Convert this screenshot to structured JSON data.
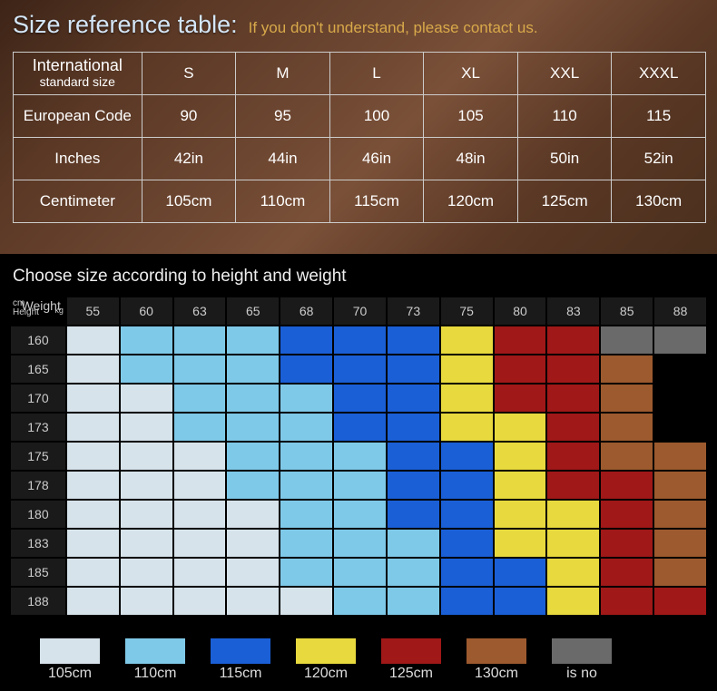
{
  "title": {
    "main": "Size reference table:",
    "sub": "If you don't understand, please contact us."
  },
  "ref_table": {
    "row_headers": [
      {
        "main": "International",
        "sub": "standard size"
      },
      "European Code",
      "Inches",
      "Centimeter"
    ],
    "rows": [
      [
        "S",
        "M",
        "L",
        "XL",
        "XXL",
        "XXXL"
      ],
      [
        "90",
        "95",
        "100",
        "105",
        "110",
        "115"
      ],
      [
        "42in",
        "44in",
        "46in",
        "48in",
        "50in",
        "52in"
      ],
      [
        "105cm",
        "110cm",
        "115cm",
        "120cm",
        "125cm",
        "130cm"
      ]
    ]
  },
  "choose_title": "Choose size according to height and weight",
  "corner": {
    "weight": "Weight",
    "kg": "kg",
    "height": "Height",
    "cm": "cm"
  },
  "weights": [
    "55",
    "60",
    "63",
    "65",
    "68",
    "70",
    "73",
    "75",
    "80",
    "83",
    "85",
    "88"
  ],
  "heights": [
    "160",
    "165",
    "170",
    "173",
    "175",
    "178",
    "180",
    "183",
    "185",
    "188"
  ],
  "colors": {
    "105": "#d7e3ea",
    "110": "#7fc9e8",
    "115": "#1a5fd6",
    "120": "#e8d93e",
    "125": "#a01818",
    "130": "#9c5a2e",
    "none": "#6a6a6a",
    "blank": "#000000"
  },
  "matrix": [
    [
      "105",
      "110",
      "110",
      "110",
      "115",
      "115",
      "115",
      "120",
      "125",
      "125",
      "none",
      "none"
    ],
    [
      "105",
      "110",
      "110",
      "110",
      "115",
      "115",
      "115",
      "120",
      "125",
      "125",
      "130",
      "blank"
    ],
    [
      "105",
      "105",
      "110",
      "110",
      "110",
      "115",
      "115",
      "120",
      "125",
      "125",
      "130",
      "blank"
    ],
    [
      "105",
      "105",
      "110",
      "110",
      "110",
      "115",
      "115",
      "120",
      "120",
      "125",
      "130",
      "blank"
    ],
    [
      "105",
      "105",
      "105",
      "110",
      "110",
      "110",
      "115",
      "115",
      "120",
      "125",
      "130",
      "130"
    ],
    [
      "105",
      "105",
      "105",
      "110",
      "110",
      "110",
      "115",
      "115",
      "120",
      "125",
      "125",
      "130"
    ],
    [
      "105",
      "105",
      "105",
      "105",
      "110",
      "110",
      "115",
      "115",
      "120",
      "120",
      "125",
      "130"
    ],
    [
      "105",
      "105",
      "105",
      "105",
      "110",
      "110",
      "110",
      "115",
      "120",
      "120",
      "125",
      "130"
    ],
    [
      "105",
      "105",
      "105",
      "105",
      "110",
      "110",
      "110",
      "115",
      "115",
      "120",
      "125",
      "130"
    ],
    [
      "105",
      "105",
      "105",
      "105",
      "105",
      "110",
      "110",
      "115",
      "115",
      "120",
      "125",
      "125"
    ]
  ],
  "legend": [
    {
      "label": "105cm",
      "key": "105"
    },
    {
      "label": "110cm",
      "key": "110"
    },
    {
      "label": "115cm",
      "key": "115"
    },
    {
      "label": "120cm",
      "key": "120"
    },
    {
      "label": "125cm",
      "key": "125"
    },
    {
      "label": "130cm",
      "key": "130"
    },
    {
      "label": "is no",
      "key": "none"
    }
  ]
}
